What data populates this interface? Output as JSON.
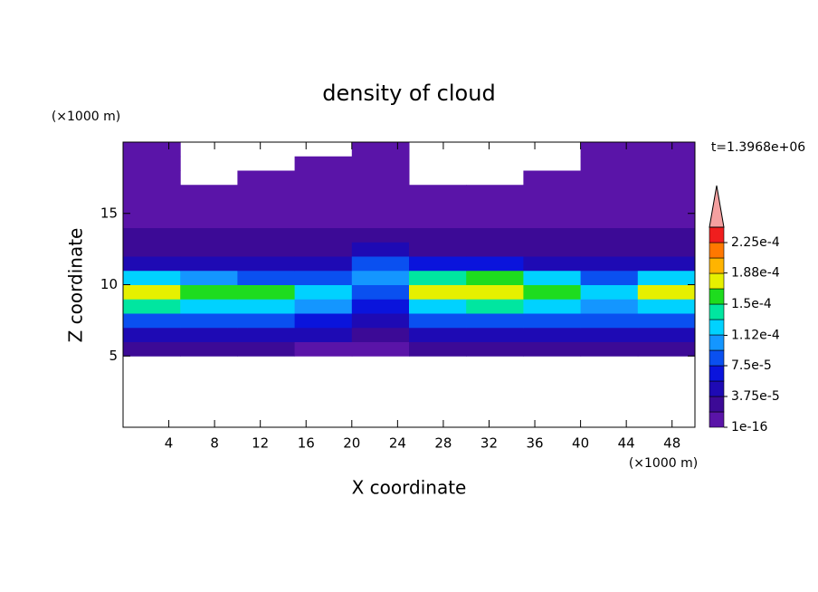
{
  "chart_data": {
    "type": "contour",
    "title": "density of cloud",
    "xlabel": "X coordinate",
    "ylabel": "Z coordinate",
    "x_unit": "(×1000 m)",
    "y_unit": "(×1000 m)",
    "annotation": "t=1.3968e+06",
    "xlim": [
      0,
      50
    ],
    "ylim": [
      0,
      20
    ],
    "xticks": [
      4,
      8,
      12,
      16,
      20,
      24,
      28,
      32,
      36,
      40,
      44,
      48
    ],
    "yticks": [
      5,
      10,
      15
    ],
    "x": [
      2.5,
      7.5,
      12.5,
      17.5,
      22.5,
      27.5,
      32.5,
      37.5,
      42.5,
      47.5
    ],
    "y": [
      0.5,
      1.5,
      2.5,
      3.5,
      4.5,
      5.5,
      6.5,
      7.5,
      8.5,
      9.5,
      10.5,
      11.5,
      12.5,
      13.5,
      14.5,
      15.5,
      16.5,
      17.5,
      18.5,
      19.5
    ],
    "z": [
      [
        null,
        null,
        null,
        null,
        null,
        null,
        null,
        null,
        null,
        null
      ],
      [
        null,
        null,
        null,
        null,
        null,
        null,
        null,
        null,
        null,
        null
      ],
      [
        null,
        null,
        null,
        null,
        null,
        null,
        null,
        null,
        null,
        null
      ],
      [
        null,
        null,
        null,
        null,
        null,
        null,
        null,
        null,
        null,
        null
      ],
      [
        null,
        null,
        null,
        null,
        null,
        null,
        null,
        null,
        null,
        null
      ],
      [
        2e-05,
        2e-05,
        2e-05,
        1.5e-05,
        1e-05,
        2e-05,
        2e-05,
        2e-05,
        2e-05,
        2e-05
      ],
      [
        5e-05,
        5e-05,
        5e-05,
        4e-05,
        2e-05,
        5e-05,
        5e-05,
        5e-05,
        5e-05,
        5e-05
      ],
      [
        9e-05,
        9e-05,
        9e-05,
        7e-05,
        4e-05,
        9e-05,
        9e-05,
        9e-05,
        8e-05,
        9e-05
      ],
      [
        0.00014,
        0.00013,
        0.00013,
        0.0001,
        6e-05,
        0.00013,
        0.00014,
        0.00013,
        0.00011,
        0.00013
      ],
      [
        0.00017,
        0.00016,
        0.00015,
        0.00012,
        9e-05,
        0.00017,
        0.00018,
        0.00016,
        0.00013,
        0.00017
      ],
      [
        0.00013,
        0.00011,
        9e-05,
        8e-05,
        0.00011,
        0.00014,
        0.00015,
        0.00012,
        9e-05,
        0.00013
      ],
      [
        5e-05,
        4e-05,
        4e-05,
        5e-05,
        8e-05,
        7e-05,
        6e-05,
        5e-05,
        5e-05,
        5e-05
      ],
      [
        3e-05,
        3e-05,
        3e-05,
        3e-05,
        4e-05,
        3e-05,
        3e-05,
        3e-05,
        3e-05,
        3e-05
      ],
      [
        2e-05,
        2e-05,
        2e-05,
        2e-05,
        2.5e-05,
        2e-05,
        2e-05,
        2e-05,
        2e-05,
        2e-05
      ],
      [
        1e-05,
        1e-05,
        1e-05,
        1.5e-05,
        1.5e-05,
        1e-05,
        1e-05,
        1e-05,
        1e-05,
        1e-05
      ],
      [
        5e-06,
        5e-06,
        5e-06,
        5e-06,
        5e-06,
        5e-06,
        5e-06,
        5e-06,
        5e-06,
        5e-06
      ],
      [
        1e-06,
        1e-06,
        1e-06,
        1e-06,
        1e-06,
        1e-06,
        1e-06,
        1e-06,
        1e-06,
        1e-06
      ],
      [
        1e-06,
        null,
        1e-06,
        1e-06,
        1e-06,
        null,
        null,
        1e-06,
        1e-06,
        1e-06
      ],
      [
        1e-06,
        null,
        null,
        1e-06,
        1e-06,
        null,
        null,
        null,
        1e-06,
        1e-06
      ],
      [
        1e-06,
        null,
        null,
        null,
        1e-06,
        null,
        null,
        null,
        1e-06,
        1e-06
      ]
    ],
    "colorbar": {
      "levels": [
        1e-16,
        1.875e-05,
        3.75e-05,
        5.625e-05,
        7.5e-05,
        9.375e-05,
        0.0001125,
        0.00013125,
        0.00015,
        0.00016875,
        0.0001875,
        0.00020625,
        0.000225,
        0.00024375
      ],
      "colors": [
        "#5a14a8",
        "#3c0a96",
        "#1e0ab4",
        "#0a14dc",
        "#0a50f0",
        "#1496ff",
        "#00d2ff",
        "#00e6a0",
        "#1edc1e",
        "#e6f000",
        "#ffb400",
        "#ff7800",
        "#f01e1e"
      ],
      "extend_color": "#f4a0a0",
      "ticks": [
        {
          "value": 1e-16,
          "label": "1e-16"
        },
        {
          "value": 3.75e-05,
          "label": "3.75e-5"
        },
        {
          "value": 7.5e-05,
          "label": "7.5e-5"
        },
        {
          "value": 0.000112,
          "label": "1.12e-4"
        },
        {
          "value": 0.00015,
          "label": "1.5e-4"
        },
        {
          "value": 0.000188,
          "label": "1.88e-4"
        },
        {
          "value": 0.000225,
          "label": "2.25e-4"
        }
      ]
    }
  }
}
